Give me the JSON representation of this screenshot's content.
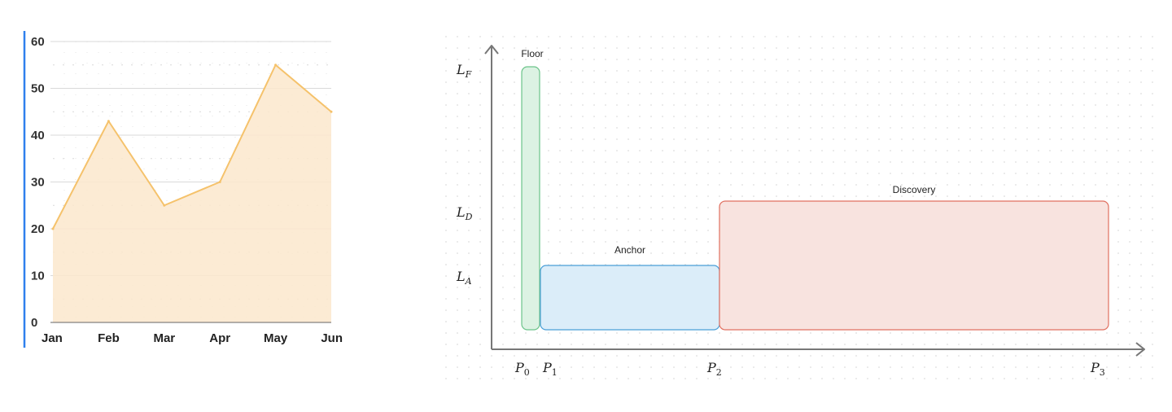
{
  "chart_data": [
    {
      "type": "area",
      "categories": [
        "Jan",
        "Feb",
        "Mar",
        "Apr",
        "May",
        "Jun"
      ],
      "values": [
        20,
        43,
        25,
        30,
        55,
        45
      ],
      "y_ticks": [
        "0",
        "10",
        "20",
        "30",
        "40",
        "50",
        "60"
      ],
      "ylim": [
        0,
        60
      ],
      "title": "",
      "xlabel": "",
      "ylabel": "",
      "grid": true,
      "colors": {
        "line": "#f5c26b",
        "fill": "#fbe7cc",
        "axis_accent": "#2f80ed",
        "grid": "#d9d9d9"
      }
    },
    {
      "type": "diagram",
      "x_labels": [
        {
          "base": "P",
          "sub": "0"
        },
        {
          "base": "P",
          "sub": "1"
        },
        {
          "base": "P",
          "sub": "2"
        },
        {
          "base": "P",
          "sub": "3"
        }
      ],
      "y_labels": [
        {
          "base": "L",
          "sub": "F"
        },
        {
          "base": "L",
          "sub": "D"
        },
        {
          "base": "L",
          "sub": "A"
        }
      ],
      "regions": [
        {
          "name": "Floor",
          "x_from": "P0",
          "x_to": "P1",
          "y_to": "LF",
          "stroke": "#6cc48a",
          "fill": "#dcf2e3"
        },
        {
          "name": "Anchor",
          "x_from": "P1",
          "x_to": "P2",
          "y_to": "LA",
          "stroke": "#4a9fd8",
          "fill": "#dbedf9"
        },
        {
          "name": "Discovery",
          "x_from": "P2",
          "x_to": "P3",
          "y_to": "LD",
          "stroke": "#e07060",
          "fill": "#f8e3df"
        }
      ]
    }
  ]
}
